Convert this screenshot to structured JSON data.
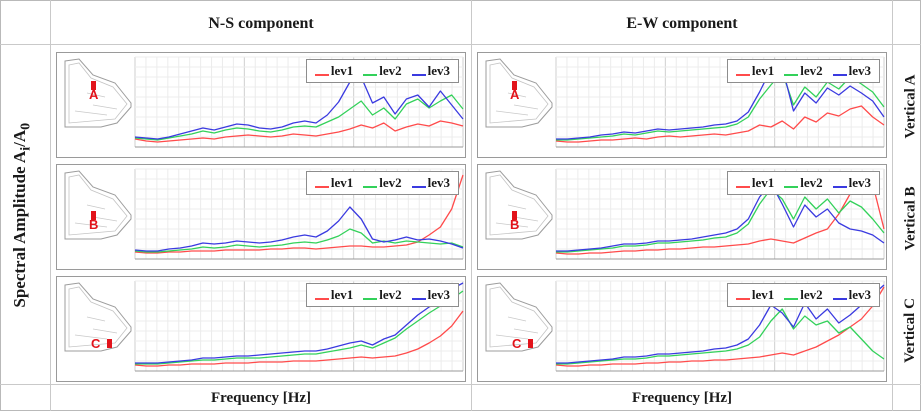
{
  "header": {
    "col1": "N-S component",
    "col2": "E-W component"
  },
  "y_axis_label": "Spectral Amplitude A",
  "y_axis_sub_i": "i",
  "y_axis_slash": "/A",
  "y_axis_sub_0": "0",
  "x_axis_label_left": "Frequency [Hz]",
  "x_axis_label_right": "Frequency [Hz]",
  "row_labels": [
    "Vertical A",
    "Vertical B",
    "Vertical C"
  ],
  "series_colors": {
    "lev1": "#ff4b4b",
    "lev2": "#33d15a",
    "lev3": "#3a3ae0"
  },
  "chart_data": [
    {
      "type": "line",
      "component": "N-S",
      "vertical": "A",
      "marker": "A",
      "xlabel": "Frequency [Hz]",
      "ylabel": "Spectral Amplitude Ai/A0",
      "legend": "top-right",
      "x": [
        1,
        2,
        3,
        4,
        5,
        6,
        7,
        8,
        9,
        10,
        11,
        12,
        13,
        14,
        15,
        16,
        17,
        18,
        19,
        20,
        21,
        22,
        23,
        24,
        25,
        26,
        27,
        28,
        29,
        30
      ],
      "series": [
        {
          "name": "lev1",
          "values": [
            0.8,
            0.6,
            0.5,
            0.6,
            0.7,
            0.8,
            0.9,
            0.8,
            1.0,
            1.1,
            1.2,
            1.1,
            1.0,
            1.1,
            1.3,
            1.2,
            1.1,
            1.3,
            1.5,
            1.8,
            2.2,
            1.9,
            2.4,
            1.6,
            2.0,
            2.3,
            2.1,
            2.6,
            2.4,
            2.1
          ]
        },
        {
          "name": "lev2",
          "values": [
            0.9,
            0.8,
            0.7,
            0.9,
            1.1,
            1.3,
            1.6,
            1.4,
            1.7,
            1.9,
            1.8,
            1.6,
            1.5,
            1.7,
            2.0,
            2.1,
            2.0,
            2.5,
            3.0,
            3.8,
            4.6,
            3.2,
            3.9,
            2.8,
            4.3,
            4.8,
            3.9,
            4.6,
            5.2,
            3.8
          ]
        },
        {
          "name": "lev3",
          "values": [
            1.0,
            0.9,
            0.8,
            1.0,
            1.3,
            1.6,
            1.9,
            1.7,
            2.0,
            2.3,
            2.2,
            1.9,
            1.8,
            2.0,
            2.4,
            2.6,
            2.4,
            3.2,
            4.5,
            6.5,
            7.0,
            4.4,
            5.0,
            3.3,
            4.8,
            5.2,
            4.0,
            5.6,
            4.2,
            2.8
          ]
        }
      ]
    },
    {
      "type": "line",
      "component": "E-W",
      "vertical": "A",
      "marker": "A",
      "xlabel": "Frequency [Hz]",
      "ylabel": "Spectral Amplitude Ai/A0",
      "legend": "top-right",
      "x": [
        1,
        2,
        3,
        4,
        5,
        6,
        7,
        8,
        9,
        10,
        11,
        12,
        13,
        14,
        15,
        16,
        17,
        18,
        19,
        20,
        21,
        22,
        23,
        24,
        25,
        26,
        27,
        28,
        29,
        30
      ],
      "series": [
        {
          "name": "lev1",
          "values": [
            0.6,
            0.5,
            0.5,
            0.6,
            0.7,
            0.7,
            0.8,
            0.9,
            0.8,
            1.0,
            1.1,
            1.0,
            1.1,
            1.2,
            1.3,
            1.2,
            1.4,
            1.6,
            2.2,
            2.0,
            2.6,
            1.8,
            3.0,
            2.5,
            3.4,
            3.1,
            3.8,
            4.1,
            3.0,
            2.2
          ]
        },
        {
          "name": "lev2",
          "values": [
            0.7,
            0.7,
            0.8,
            0.9,
            1.0,
            1.1,
            1.3,
            1.2,
            1.4,
            1.6,
            1.5,
            1.6,
            1.7,
            1.8,
            1.9,
            2.0,
            2.3,
            3.0,
            4.8,
            6.2,
            7.5,
            4.2,
            6.0,
            5.0,
            6.5,
            5.8,
            7.0,
            6.3,
            5.5,
            4.0
          ]
        },
        {
          "name": "lev3",
          "values": [
            0.8,
            0.8,
            0.9,
            1.0,
            1.2,
            1.3,
            1.5,
            1.4,
            1.6,
            1.8,
            1.7,
            1.8,
            1.9,
            2.0,
            2.2,
            2.3,
            2.6,
            3.5,
            5.5,
            7.8,
            8.0,
            3.6,
            5.4,
            4.4,
            5.9,
            5.2,
            6.1,
            5.4,
            4.6,
            3.0
          ]
        }
      ]
    },
    {
      "type": "line",
      "component": "N-S",
      "vertical": "B",
      "marker": "B",
      "xlabel": "Frequency [Hz]",
      "ylabel": "Spectral Amplitude Ai/A0",
      "legend": "top-right",
      "x": [
        1,
        2,
        3,
        4,
        5,
        6,
        7,
        8,
        9,
        10,
        11,
        12,
        13,
        14,
        15,
        16,
        17,
        18,
        19,
        20,
        21,
        22,
        23,
        24,
        25,
        26,
        27,
        28,
        29,
        30
      ],
      "series": [
        {
          "name": "lev1",
          "values": [
            0.7,
            0.6,
            0.6,
            0.7,
            0.7,
            0.8,
            0.8,
            0.8,
            0.9,
            0.9,
            0.9,
            0.9,
            1.0,
            1.0,
            1.1,
            1.1,
            1.0,
            1.1,
            1.2,
            1.3,
            1.3,
            1.2,
            1.2,
            1.3,
            1.4,
            1.7,
            2.4,
            3.2,
            5.0,
            8.4
          ]
        },
        {
          "name": "lev2",
          "values": [
            0.8,
            0.7,
            0.7,
            0.8,
            0.9,
            1.0,
            1.2,
            1.1,
            1.2,
            1.4,
            1.3,
            1.2,
            1.3,
            1.4,
            1.6,
            1.7,
            1.6,
            1.9,
            2.3,
            3.0,
            2.6,
            1.6,
            1.8,
            1.6,
            1.8,
            1.7,
            1.6,
            1.5,
            1.6,
            1.2
          ]
        },
        {
          "name": "lev3",
          "values": [
            0.9,
            0.8,
            0.8,
            1.0,
            1.1,
            1.3,
            1.6,
            1.5,
            1.6,
            1.8,
            1.7,
            1.6,
            1.7,
            1.9,
            2.2,
            2.4,
            2.2,
            2.8,
            3.8,
            5.2,
            4.0,
            2.0,
            1.7,
            1.9,
            2.2,
            1.9,
            2.0,
            1.8,
            1.5,
            1.1
          ]
        }
      ]
    },
    {
      "type": "line",
      "component": "E-W",
      "vertical": "B",
      "marker": "B",
      "xlabel": "Frequency [Hz]",
      "ylabel": "Spectral Amplitude Ai/A0",
      "legend": "top-right",
      "x": [
        1,
        2,
        3,
        4,
        5,
        6,
        7,
        8,
        9,
        10,
        11,
        12,
        13,
        14,
        15,
        16,
        17,
        18,
        19,
        20,
        21,
        22,
        23,
        24,
        25,
        26,
        27,
        28,
        29,
        30
      ],
      "series": [
        {
          "name": "lev1",
          "values": [
            0.6,
            0.5,
            0.5,
            0.6,
            0.6,
            0.7,
            0.8,
            0.8,
            0.9,
            0.9,
            1.0,
            1.0,
            1.1,
            1.2,
            1.2,
            1.3,
            1.4,
            1.5,
            1.8,
            2.0,
            1.8,
            1.6,
            2.1,
            2.6,
            3.0,
            4.5,
            6.5,
            8.5,
            7.5,
            3.0
          ]
        },
        {
          "name": "lev2",
          "values": [
            0.7,
            0.7,
            0.8,
            0.9,
            1.0,
            1.1,
            1.3,
            1.3,
            1.4,
            1.6,
            1.6,
            1.7,
            1.8,
            1.9,
            2.1,
            2.2,
            2.6,
            3.5,
            5.5,
            7.0,
            6.0,
            4.0,
            6.2,
            5.0,
            6.0,
            4.6,
            5.8,
            5.2,
            4.0,
            2.6
          ]
        },
        {
          "name": "lev3",
          "values": [
            0.8,
            0.8,
            0.9,
            1.0,
            1.1,
            1.3,
            1.5,
            1.5,
            1.6,
            1.8,
            1.8,
            1.9,
            2.0,
            2.2,
            2.4,
            2.6,
            3.0,
            4.0,
            6.2,
            7.6,
            5.5,
            3.2,
            5.4,
            4.2,
            5.0,
            3.6,
            3.0,
            2.8,
            2.4,
            1.6
          ]
        }
      ]
    },
    {
      "type": "line",
      "component": "N-S",
      "vertical": "C",
      "marker": "C",
      "xlabel": "Frequency [Hz]",
      "ylabel": "Spectral Amplitude Ai/A0",
      "legend": "top-right",
      "x": [
        1,
        2,
        3,
        4,
        5,
        6,
        7,
        8,
        9,
        10,
        11,
        12,
        13,
        14,
        15,
        16,
        17,
        18,
        19,
        20,
        21,
        22,
        23,
        24,
        25,
        26,
        27,
        28,
        29,
        30
      ],
      "series": [
        {
          "name": "lev1",
          "values": [
            0.6,
            0.5,
            0.5,
            0.6,
            0.6,
            0.7,
            0.7,
            0.7,
            0.8,
            0.8,
            0.8,
            0.9,
            0.9,
            0.9,
            1.0,
            1.0,
            1.0,
            1.1,
            1.2,
            1.3,
            1.4,
            1.3,
            1.4,
            1.5,
            1.8,
            2.2,
            2.8,
            3.5,
            4.5,
            6.0
          ]
        },
        {
          "name": "lev2",
          "values": [
            0.7,
            0.7,
            0.7,
            0.8,
            0.9,
            1.0,
            1.1,
            1.1,
            1.2,
            1.3,
            1.3,
            1.3,
            1.4,
            1.5,
            1.6,
            1.7,
            1.7,
            1.9,
            2.1,
            2.3,
            2.6,
            2.3,
            2.8,
            3.3,
            4.2,
            5.0,
            5.8,
            6.5,
            7.2,
            8.0
          ]
        },
        {
          "name": "lev3",
          "values": [
            0.8,
            0.8,
            0.8,
            0.9,
            1.0,
            1.1,
            1.3,
            1.3,
            1.4,
            1.5,
            1.5,
            1.6,
            1.7,
            1.8,
            1.9,
            2.0,
            2.0,
            2.2,
            2.5,
            2.8,
            3.0,
            2.6,
            3.2,
            3.6,
            4.6,
            5.6,
            6.4,
            7.4,
            8.2,
            8.8
          ]
        }
      ]
    },
    {
      "type": "line",
      "component": "E-W",
      "vertical": "C",
      "marker": "C",
      "xlabel": "Frequency [Hz]",
      "ylabel": "Spectral Amplitude Ai/A0",
      "legend": "top-right",
      "x": [
        1,
        2,
        3,
        4,
        5,
        6,
        7,
        8,
        9,
        10,
        11,
        12,
        13,
        14,
        15,
        16,
        17,
        18,
        19,
        20,
        21,
        22,
        23,
        24,
        25,
        26,
        27,
        28,
        29,
        30
      ],
      "series": [
        {
          "name": "lev1",
          "values": [
            0.6,
            0.5,
            0.5,
            0.6,
            0.6,
            0.7,
            0.7,
            0.7,
            0.8,
            0.8,
            0.9,
            0.9,
            1.0,
            1.0,
            1.1,
            1.1,
            1.2,
            1.3,
            1.4,
            1.6,
            1.8,
            1.6,
            2.0,
            2.4,
            3.0,
            3.6,
            4.4,
            5.2,
            6.5,
            8.4
          ]
        },
        {
          "name": "lev2",
          "values": [
            0.7,
            0.7,
            0.8,
            0.9,
            1.0,
            1.1,
            1.2,
            1.2,
            1.3,
            1.5,
            1.5,
            1.6,
            1.7,
            1.8,
            1.9,
            2.0,
            2.2,
            2.6,
            3.4,
            5.0,
            6.2,
            4.2,
            5.5,
            4.6,
            5.0,
            3.8,
            4.4,
            3.2,
            2.0,
            1.2
          ]
        },
        {
          "name": "lev3",
          "values": [
            0.8,
            0.8,
            0.9,
            1.0,
            1.1,
            1.2,
            1.4,
            1.4,
            1.5,
            1.7,
            1.7,
            1.8,
            1.9,
            2.0,
            2.2,
            2.3,
            2.6,
            3.2,
            4.6,
            6.6,
            5.8,
            4.4,
            6.8,
            5.2,
            6.2,
            4.8,
            5.6,
            6.6,
            7.6,
            8.6
          ]
        }
      ]
    }
  ]
}
